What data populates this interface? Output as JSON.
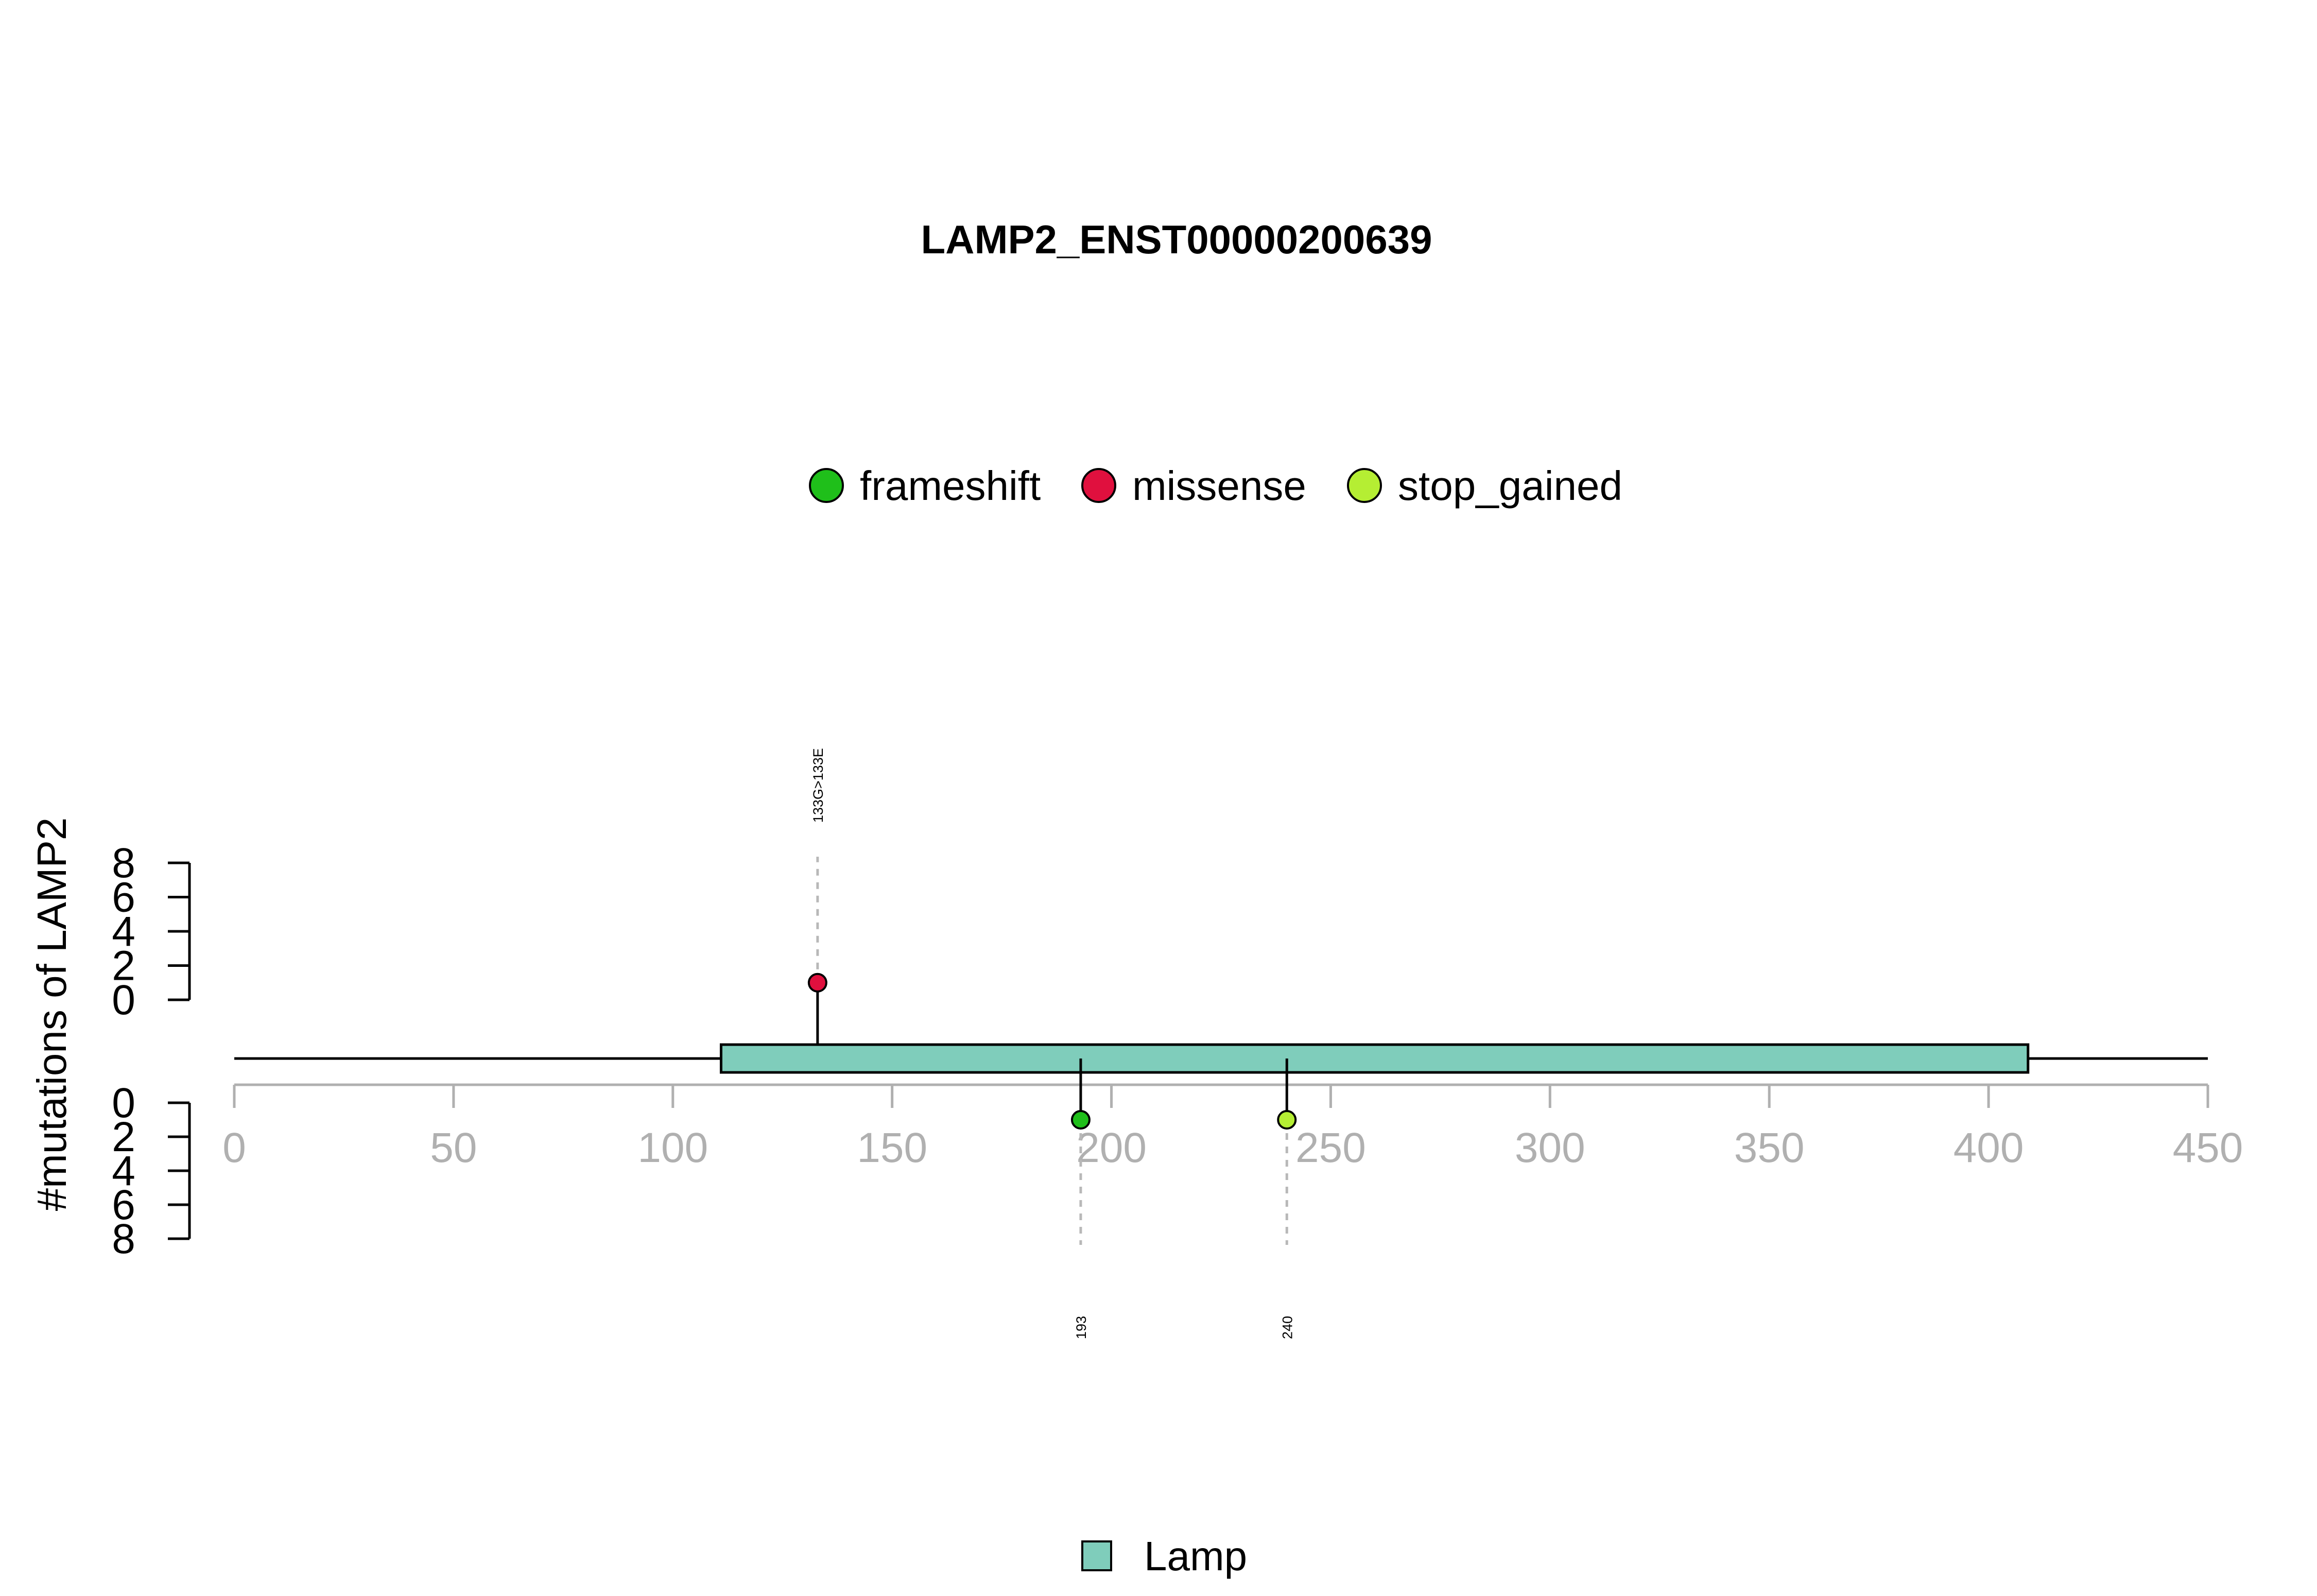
{
  "chart_data": {
    "type": "lollipop",
    "title": "LAMP2_ENST00000200639",
    "ylabel": "#mutations of LAMP2",
    "xlim": [
      0,
      450
    ],
    "x_ticks": [
      0,
      50,
      100,
      150,
      200,
      250,
      300,
      350,
      400,
      450
    ],
    "y_ticks": [
      0,
      2,
      4,
      6,
      8
    ],
    "ylim": [
      0,
      8
    ],
    "protein_length": 450,
    "legend_mutation_types": [
      {
        "name": "frameshift",
        "color": "#1FBF1A"
      },
      {
        "name": "missense",
        "color": "#E0103E"
      },
      {
        "name": "stop_gained",
        "color": "#B5EE33"
      }
    ],
    "domains": [
      {
        "name": "Lamp",
        "start": 111,
        "end": 409,
        "color": "#7FCDBB"
      }
    ],
    "mutations": [
      {
        "position": 133,
        "label": "133G>133E",
        "type": "missense",
        "count": 1,
        "side": "top"
      },
      {
        "position": 193,
        "label": "193",
        "type": "frameshift",
        "count": 1,
        "side": "bottom"
      },
      {
        "position": 240,
        "label": "240",
        "type": "stop_gained",
        "count": 1,
        "side": "bottom"
      }
    ]
  }
}
